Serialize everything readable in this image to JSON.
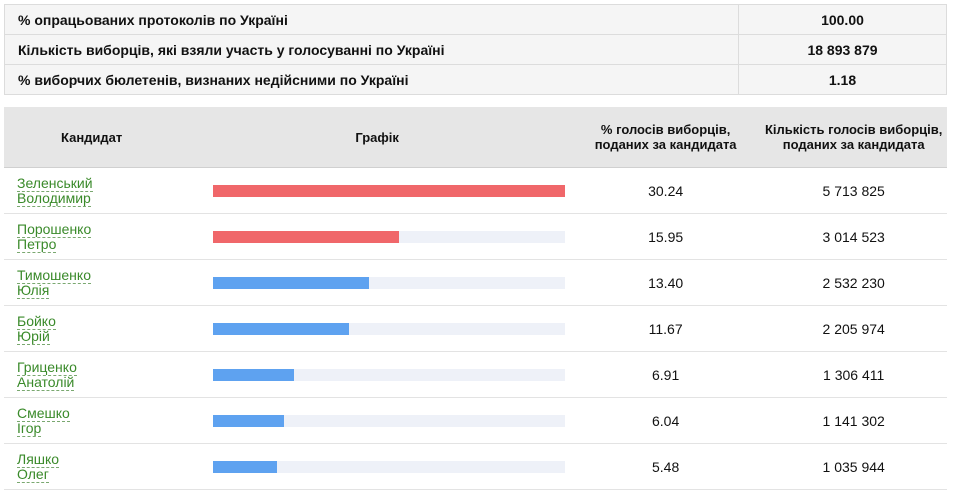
{
  "summary": [
    {
      "label": "% опрацьованих протоколів по Україні",
      "value": "100.00"
    },
    {
      "label": "Кількість виборців, які взяли участь у голосуванні по Україні",
      "value": "18 893 879"
    },
    {
      "label": "% виборчих бюлетенів, визнаних недійсними по Україні",
      "value": "1.18"
    }
  ],
  "headers": {
    "candidate": "Кандидат",
    "graph": "Графік",
    "pct": "% голосів виборців, поданих за кандидата",
    "count": "Кількість голосів виборців, поданих за кандидата"
  },
  "colors": {
    "top_two": "#f0676a",
    "others": "#5ea2f0",
    "track": "#eef1f8",
    "link": "#3a8a2a"
  },
  "candidates": [
    {
      "surname": "Зеленський",
      "first": "Володимир",
      "pct": "30.24",
      "count": "5 713 825",
      "share": 30.24
    },
    {
      "surname": "Порошенко",
      "first": "Петро",
      "pct": "15.95",
      "count": "3 014 523",
      "share": 15.95
    },
    {
      "surname": "Тимошенко",
      "first": "Юлія",
      "pct": "13.40",
      "count": "2 532 230",
      "share": 13.4
    },
    {
      "surname": "Бойко",
      "first": "Юрій",
      "pct": "11.67",
      "count": "2 205 974",
      "share": 11.67
    },
    {
      "surname": "Гриценко",
      "first": "Анатолій",
      "pct": "6.91",
      "count": "1 306 411",
      "share": 6.91
    },
    {
      "surname": "Смешко",
      "first": "Ігор",
      "pct": "6.04",
      "count": "1 141 302",
      "share": 6.04
    },
    {
      "surname": "Ляшко",
      "first": "Олег",
      "pct": "5.48",
      "count": "1 035 944",
      "share": 5.48
    }
  ]
}
